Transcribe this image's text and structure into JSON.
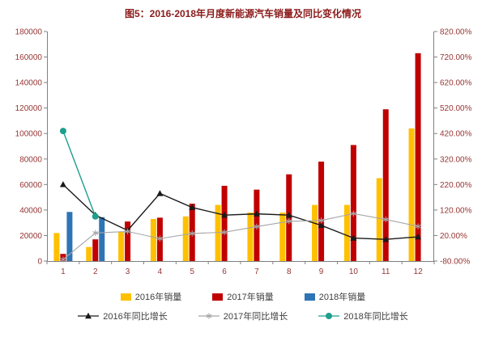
{
  "colors": {
    "title_text": "#8B1A1A",
    "axis_text": "#963634",
    "legend_text": "#404040",
    "axis_line": "#808080",
    "background": "#FFFFFF"
  },
  "chart_data": {
    "type": "combo (grouped bar + line, dual axis)",
    "title": "图5：2016-2018年月度新能源汽车销量及同比变化情况",
    "categories": [
      "1",
      "2",
      "3",
      "4",
      "5",
      "6",
      "7",
      "8",
      "9",
      "10",
      "11",
      "12"
    ],
    "left_axis": {
      "min": 0,
      "max": 180000,
      "step": 20000,
      "applies_to": "sales bars"
    },
    "right_axis": {
      "min": -80,
      "max": 820,
      "step": 100,
      "format": "0.00%",
      "applies_to": "yoy growth lines"
    },
    "grid": "off",
    "legend_position": "bottom",
    "series": [
      {
        "name": "2016年销量",
        "type": "bar",
        "axis": "left",
        "color": "#FFC000",
        "values": [
          22000,
          11000,
          23000,
          33000,
          35000,
          44000,
          38000,
          38000,
          44000,
          44000,
          65000,
          104000
        ]
      },
      {
        "name": "2017年销量",
        "type": "bar",
        "axis": "left",
        "color": "#C00000",
        "values": [
          5600,
          17000,
          31000,
          34000,
          45000,
          59000,
          56000,
          68000,
          78000,
          91000,
          119000,
          163000
        ]
      },
      {
        "name": "2018年销量",
        "type": "bar",
        "axis": "left",
        "color": "#2E75B6",
        "values": [
          38500,
          34400,
          null,
          null,
          null,
          null,
          null,
          null,
          null,
          null,
          null,
          null
        ]
      },
      {
        "name": "2016年同比增长",
        "type": "line",
        "marker": "triangle",
        "axis": "right",
        "unit": "%",
        "color": "#1A1A1A",
        "values": [
          220,
          100,
          40,
          185,
          130,
          100,
          105,
          100,
          60,
          10,
          5,
          15
        ]
      },
      {
        "name": "2017年同比增长",
        "type": "line",
        "marker": "star",
        "axis": "right",
        "unit": "%",
        "color": "#A6A6A6",
        "values": [
          -74,
          30,
          36,
          8,
          28,
          33,
          55,
          76,
          79,
          106,
          83,
          56
        ]
      },
      {
        "name": "2018年同比增长",
        "type": "line",
        "marker": "circle",
        "axis": "right",
        "unit": "%",
        "color": "#1F9E8E",
        "values": [
          430,
          95,
          null,
          null,
          null,
          null,
          null,
          null,
          null,
          null,
          null,
          null
        ]
      }
    ]
  }
}
